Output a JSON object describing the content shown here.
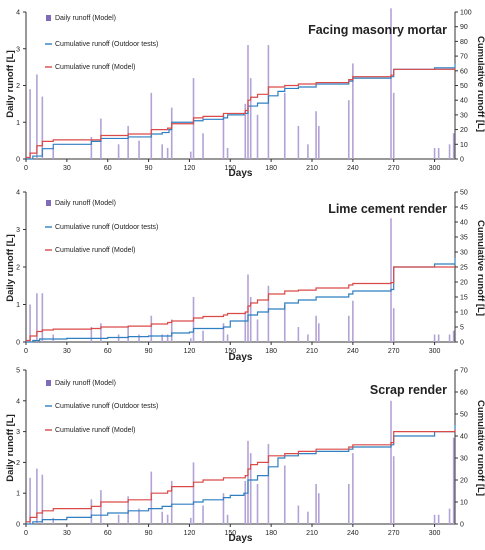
{
  "colors": {
    "daily": "#b3a2d6",
    "legend_daily": "#7f6bb8",
    "outdoor": "#2f7fc1",
    "model": "#d94a48",
    "axis": "#333333"
  },
  "x_ticks": [
    "0",
    "30",
    "60",
    "90",
    "120",
    "150",
    "180",
    "210",
    "240",
    "270",
    "300"
  ],
  "legend_labels": {
    "daily": "Daily runoff (Model)",
    "outdoor": "Cumulative runoff (Outdoor tests)",
    "model": "Cumulative runoff (Model)"
  },
  "chart_data": [
    {
      "type": "line",
      "title": "Facing masonry mortar",
      "xlabel": "Days",
      "ylabel_left": "Daily runoff [L]",
      "ylabel_right": "Cumulative runoff [L]",
      "xlim": [
        0,
        315
      ],
      "ylim_left": [
        0,
        4
      ],
      "ylim_right": [
        0,
        100
      ],
      "yticks_left": [
        "0",
        "1",
        "2",
        "3",
        "4"
      ],
      "yticks_right": [
        "0",
        "10",
        "20",
        "30",
        "40",
        "50",
        "60",
        "70",
        "80",
        "90",
        "100"
      ],
      "grid": false,
      "legend_position": "top-left",
      "bars": {
        "name": "Daily runoff (Model)",
        "x": [
          3,
          8,
          12,
          20,
          48,
          55,
          68,
          75,
          83,
          92,
          100,
          104,
          107,
          121,
          123,
          130,
          145,
          148,
          161,
          163,
          165,
          170,
          178,
          190,
          200,
          207,
          213,
          215,
          237,
          240,
          268,
          270,
          300,
          303,
          311,
          314
        ],
        "values": [
          1.9,
          2.3,
          1.7,
          0.3,
          0.6,
          1.1,
          0.4,
          0.9,
          0.5,
          1.8,
          0.4,
          0.3,
          1.4,
          0.2,
          2.2,
          0.7,
          1.2,
          0.3,
          1.5,
          3.1,
          2.2,
          1.2,
          3.1,
          1.8,
          0.9,
          0.4,
          1.3,
          0.9,
          1.6,
          2.6,
          4.1,
          1.8,
          0.3,
          0.3,
          0.4,
          0.7
        ]
      },
      "series": [
        {
          "name": "Cumulative runoff (Outdoor tests)",
          "x": [
            0,
            5,
            12,
            20,
            45,
            48,
            55,
            68,
            75,
            92,
            100,
            105,
            107,
            123,
            130,
            145,
            148,
            160,
            163,
            165,
            170,
            178,
            185,
            190,
            200,
            213,
            237,
            240,
            268,
            270,
            300,
            315
          ],
          "values": [
            0,
            2,
            7,
            10,
            10,
            12,
            14,
            14,
            15,
            17,
            18,
            20,
            25,
            26,
            27,
            28,
            30,
            31,
            36,
            36,
            38,
            43,
            46,
            48,
            49,
            51,
            53,
            55,
            56,
            61,
            62,
            65
          ]
        },
        {
          "name": "Cumulative runoff (Model)",
          "x": [
            0,
            3,
            8,
            12,
            20,
            48,
            55,
            75,
            92,
            104,
            107,
            123,
            130,
            145,
            161,
            163,
            165,
            170,
            178,
            190,
            200,
            213,
            237,
            240,
            268,
            270,
            300,
            315
          ],
          "values": [
            1,
            4,
            9,
            12,
            13,
            13,
            16,
            17,
            20,
            21,
            24,
            28,
            29,
            31,
            33,
            40,
            42,
            44,
            49,
            50,
            51,
            52,
            54,
            56,
            57,
            61,
            61,
            62
          ]
        }
      ]
    },
    {
      "type": "line",
      "title": "Lime cement render",
      "xlabel": "Days",
      "ylabel_left": "Daily runoff [L]",
      "ylabel_right": "Cumulative runoff [L]",
      "xlim": [
        0,
        315
      ],
      "ylim_left": [
        0,
        4
      ],
      "ylim_right": [
        0,
        50
      ],
      "yticks_left": [
        "0",
        "1",
        "2",
        "3",
        "4"
      ],
      "yticks_right": [
        "0",
        "5",
        "10",
        "15",
        "20",
        "25",
        "30",
        "35",
        "40",
        "45",
        "50"
      ],
      "grid": false,
      "legend_position": "top-left",
      "bars": {
        "name": "Daily runoff (Model)",
        "x": [
          3,
          8,
          12,
          20,
          48,
          55,
          68,
          75,
          83,
          92,
          100,
          104,
          107,
          121,
          123,
          130,
          145,
          148,
          161,
          163,
          165,
          170,
          178,
          190,
          200,
          207,
          213,
          215,
          237,
          240,
          268,
          270,
          300,
          303,
          311,
          314
        ],
        "values": [
          1.0,
          1.3,
          1.3,
          0.2,
          0.4,
          0.5,
          0.2,
          0.4,
          0.2,
          0.7,
          0.2,
          0.2,
          0.6,
          0.1,
          1.2,
          0.3,
          0.5,
          0.2,
          0.8,
          1.8,
          1.2,
          0.6,
          1.5,
          1.0,
          0.4,
          0.2,
          0.7,
          0.5,
          0.7,
          1.1,
          3.3,
          0.9,
          0.2,
          0.2,
          0.2,
          0.3
        ]
      },
      "series": [
        {
          "name": "Cumulative runoff (Outdoor tests)",
          "x": [
            0,
            5,
            10,
            30,
            60,
            75,
            90,
            107,
            120,
            123,
            145,
            150,
            163,
            170,
            178,
            190,
            200,
            213,
            237,
            240,
            268,
            270,
            300,
            315
          ],
          "values": [
            0,
            0.5,
            1,
            1.2,
            1.5,
            1.8,
            2,
            3,
            3.3,
            4.5,
            5,
            7,
            9,
            10,
            11,
            13,
            14,
            15,
            16,
            17,
            17.5,
            25,
            26,
            28
          ]
        },
        {
          "name": "Cumulative runoff (Model)",
          "x": [
            0,
            3,
            8,
            12,
            20,
            48,
            55,
            75,
            92,
            104,
            107,
            123,
            130,
            145,
            148,
            161,
            163,
            165,
            170,
            178,
            190,
            200,
            213,
            237,
            240,
            268,
            270,
            300,
            315
          ],
          "values": [
            0.5,
            2,
            3.5,
            4,
            4.3,
            4.5,
            5,
            5.3,
            6,
            6.5,
            7,
            8,
            8.5,
            9,
            9.5,
            10,
            12,
            13,
            14,
            16,
            17,
            17.3,
            18,
            19,
            19.5,
            19.8,
            25,
            25,
            25
          ]
        }
      ]
    },
    {
      "type": "line",
      "title": "Scrap render",
      "xlabel": "Days",
      "ylabel_left": "Daily runoff [L]",
      "ylabel_right": "Cumulative runoff [L]",
      "xlim": [
        0,
        315
      ],
      "ylim_left": [
        0,
        5
      ],
      "ylim_right": [
        0,
        70
      ],
      "yticks_left": [
        "0",
        "1",
        "2",
        "3",
        "4",
        "5"
      ],
      "yticks_right": [
        "0",
        "10",
        "20",
        "30",
        "40",
        "50",
        "60",
        "70"
      ],
      "grid": false,
      "legend_position": "top-left",
      "bars": {
        "name": "Daily runoff (Model)",
        "x": [
          3,
          8,
          12,
          20,
          48,
          55,
          68,
          75,
          83,
          92,
          100,
          104,
          107,
          121,
          123,
          130,
          145,
          148,
          161,
          163,
          165,
          170,
          178,
          190,
          200,
          207,
          213,
          215,
          237,
          240,
          268,
          270,
          300,
          303,
          311,
          314
        ],
        "values": [
          1.5,
          1.8,
          1.6,
          0.2,
          0.8,
          1.1,
          0.3,
          0.9,
          0.5,
          1.7,
          0.4,
          0.3,
          1.4,
          0.2,
          2.0,
          0.6,
          1.0,
          0.3,
          1.4,
          2.7,
          2.3,
          1.3,
          2.6,
          1.9,
          0.6,
          0.4,
          1.3,
          1.0,
          1.3,
          2.3,
          4.0,
          2.2,
          0.3,
          0.3,
          0.5,
          2.8
        ]
      },
      "series": [
        {
          "name": "Cumulative runoff (Outdoor tests)",
          "x": [
            0,
            5,
            12,
            30,
            48,
            60,
            75,
            90,
            100,
            107,
            123,
            130,
            145,
            150,
            160,
            163,
            170,
            178,
            185,
            190,
            200,
            213,
            237,
            240,
            268,
            270,
            300,
            315
          ],
          "values": [
            0,
            1,
            2,
            3,
            4,
            5,
            6,
            7,
            8,
            9,
            10,
            11,
            12,
            13,
            14,
            20,
            22,
            26,
            30,
            31,
            32,
            33,
            34,
            35,
            36,
            40,
            42,
            45
          ]
        },
        {
          "name": "Cumulative runoff (Model)",
          "x": [
            0,
            3,
            8,
            12,
            20,
            48,
            55,
            75,
            92,
            104,
            107,
            123,
            130,
            145,
            161,
            163,
            165,
            170,
            178,
            190,
            200,
            213,
            237,
            240,
            268,
            270,
            300,
            315
          ],
          "values": [
            1,
            3,
            5,
            6,
            7,
            8,
            10,
            11,
            14,
            15,
            17,
            19,
            20,
            21,
            22,
            25,
            27,
            28,
            31,
            32,
            33,
            34,
            35,
            36,
            37,
            42,
            42,
            43
          ]
        }
      ]
    }
  ]
}
